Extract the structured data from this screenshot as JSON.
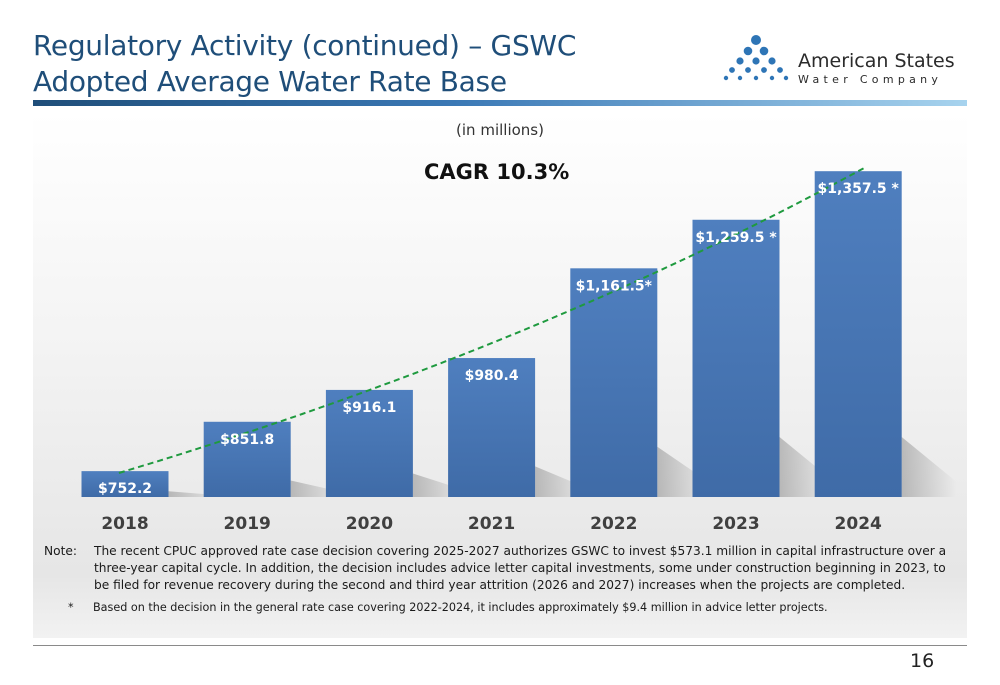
{
  "header": {
    "title_line1": "Regulatory Activity (continued) – GSWC",
    "title_line2": "Adopted Average Water Rate Base"
  },
  "logo": {
    "name": "American States",
    "subtitle": "Water Company",
    "icon": "water-drops-logo-icon",
    "dot_color": "#2e75b6"
  },
  "chart_data": {
    "type": "bar",
    "subtitle": "(in millions)",
    "annotation": "CAGR 10.3%",
    "categories": [
      "2018",
      "2019",
      "2020",
      "2021",
      "2022",
      "2023",
      "2024"
    ],
    "values": [
      752.2,
      851.8,
      916.1,
      980.4,
      1161.5,
      1259.5,
      1357.5
    ],
    "data_labels": [
      "$752.2",
      "$851.8",
      "$916.1",
      "$980.4",
      "$1,161.5*",
      "$1,259.5 *",
      "$1,357.5 *"
    ],
    "trendline": {
      "type": "exponential",
      "style": "dashed",
      "color": "#1f9a3f"
    },
    "bar_color": "#4a78b8",
    "ylim": [
      700,
      1370
    ],
    "grid": false,
    "legend": "none"
  },
  "note": {
    "label": "Note:",
    "text": "The recent CPUC approved rate case decision covering 2025-2027 authorizes GSWC to invest $573.1 million in capital infrastructure over a three-year capital cycle.  In addition, the decision includes advice letter capital investments, some under construction beginning in 2023, to be filed for revenue recovery during the second and third year attrition (2026 and 2027) increases when the projects are completed."
  },
  "footnote": {
    "marker": "*",
    "text": "Based on the decision in the general rate case covering 2022-2024, it includes approximately $9.4 million in advice letter projects."
  },
  "page_number": "16"
}
